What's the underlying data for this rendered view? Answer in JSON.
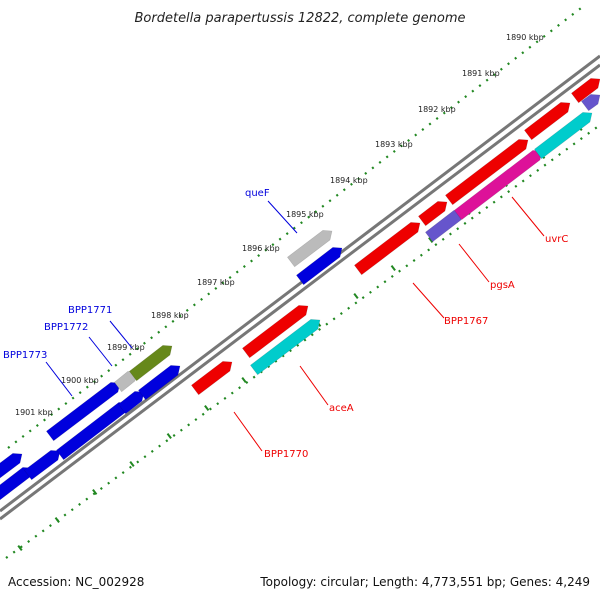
{
  "title": "Bordetella parapertussis 12822, complete genome",
  "accession": "Accession: NC_002928",
  "summary": "Topology: circular; Length: 4,773,551 bp; Genes: 4,249",
  "scale_labels": [
    "1890 kbp",
    "1891 kbp",
    "1892 kbp",
    "1893 kbp",
    "1894 kbp",
    "1895 kbp",
    "1896 kbp",
    "1897 kbp",
    "1898 kbp",
    "1899 kbp",
    "1900 kbp",
    "1901 kbp"
  ],
  "colors": {
    "blue": "#0000dd",
    "red": "#ee0000",
    "cyan": "#00cccc",
    "magenta": "#dd1199",
    "slate": "#6655cc",
    "gray": "#bbbbbb",
    "olive": "#66881a",
    "tick": "#228822",
    "backbone": "#777777"
  },
  "gene_labels": {
    "queF": "queF",
    "BPP1771": "BPP1771",
    "BPP1772": "BPP1772",
    "BPP1773": "BPP1773",
    "uvrC": "uvrC",
    "pgsA": "pgsA",
    "BPP1767": "BPP1767",
    "aceA": "aceA",
    "BPP1770": "BPP1770"
  }
}
